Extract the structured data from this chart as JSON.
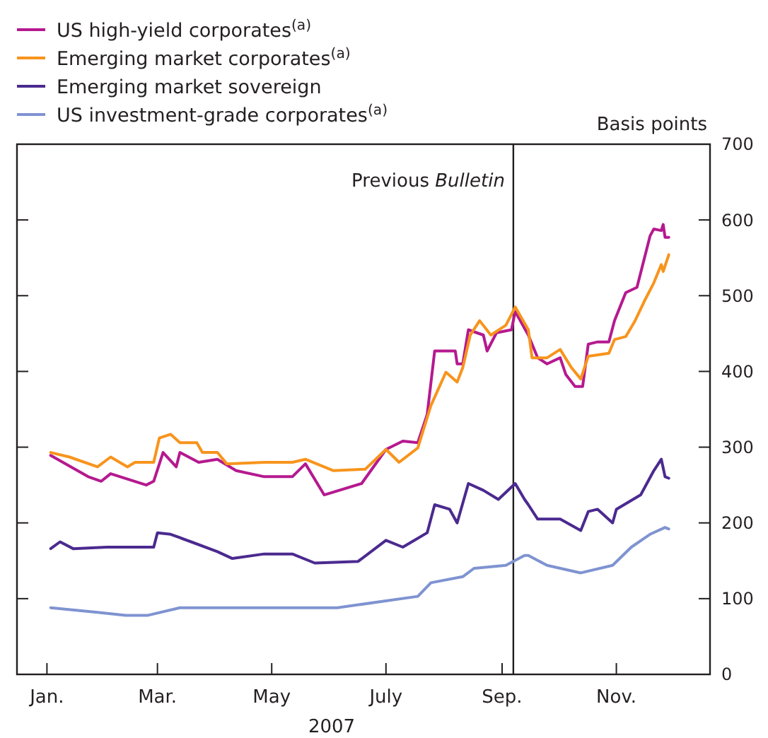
{
  "chart_data": {
    "type": "line",
    "xlabel": "2007",
    "ylabel": "Basis points",
    "legend": "top left",
    "grid": false,
    "xlim": [
      "2006-12-16",
      "2007-12-21"
    ],
    "xticks": [
      {
        "value": "2007-01-01",
        "label": "Jan."
      },
      {
        "value": "2007-03-01",
        "label": "Mar."
      },
      {
        "value": "2007-05-01",
        "label": "May"
      },
      {
        "value": "2007-07-01",
        "label": "July"
      },
      {
        "value": "2007-09-01",
        "label": "Sep."
      },
      {
        "value": "2007-11-01",
        "label": "Nov."
      }
    ],
    "ylim": [
      0,
      700
    ],
    "yticks": [
      0,
      100,
      200,
      300,
      400,
      500,
      600,
      700
    ],
    "ref_lines": [
      {
        "axis": "x",
        "value": "2007-09-07",
        "label": "Previous Bulletin",
        "color": "#231f20"
      }
    ],
    "series": [
      {
        "name": "US high-yield corporates$^{(a)}$",
        "color": "#b5198f",
        "x": [
          "2007-01-03",
          "2007-01-23",
          "2007-01-30",
          "2007-02-04",
          "2007-02-23",
          "2007-02-27",
          "2007-03-04",
          "2007-03-11",
          "2007-03-13",
          "2007-03-23",
          "2007-04-02",
          "2007-04-12",
          "2007-04-27",
          "2007-05-12",
          "2007-05-19",
          "2007-05-29",
          "2007-06-18",
          "2007-07-01",
          "2007-07-10",
          "2007-07-18",
          "2007-07-23",
          "2007-07-27",
          "2007-08-07",
          "2007-08-08",
          "2007-08-11",
          "2007-08-14",
          "2007-08-22",
          "2007-08-24",
          "2007-08-29",
          "2007-09-06",
          "2007-09-08",
          "2007-09-15",
          "2007-09-20",
          "2007-09-25",
          "2007-10-02",
          "2007-10-05",
          "2007-10-10",
          "2007-10-14",
          "2007-10-17",
          "2007-10-22",
          "2007-10-28",
          "2007-10-31",
          "2007-11-06",
          "2007-11-12",
          "2007-11-19",
          "2007-11-21",
          "2007-11-25",
          "2007-11-26",
          "2007-11-27",
          "2007-11-29"
        ],
        "values": [
          289,
          261,
          255,
          265,
          250,
          255,
          293,
          274,
          293,
          280,
          284,
          269,
          261,
          261,
          278,
          237,
          252,
          297,
          308,
          306,
          343,
          427,
          427,
          410,
          410,
          455,
          448,
          427,
          451,
          455,
          479,
          448,
          418,
          410,
          418,
          396,
          380,
          380,
          436,
          439,
          439,
          467,
          504,
          511,
          579,
          588,
          586,
          594,
          577,
          577
        ]
      },
      {
        "name": "Emerging market corporates$^{(a)}$",
        "color": "#f7941d",
        "x": [
          "2007-01-03",
          "2007-01-13",
          "2007-01-28",
          "2007-02-04",
          "2007-02-13",
          "2007-02-17",
          "2007-02-27",
          "2007-03-02",
          "2007-03-08",
          "2007-03-13",
          "2007-03-22",
          "2007-03-25",
          "2007-04-02",
          "2007-04-07",
          "2007-04-27",
          "2007-05-12",
          "2007-05-19",
          "2007-06-03",
          "2007-06-20",
          "2007-07-01",
          "2007-07-08",
          "2007-07-18",
          "2007-07-25",
          "2007-08-02",
          "2007-08-08",
          "2007-08-11",
          "2007-08-15",
          "2007-08-20",
          "2007-08-26",
          "2007-09-03",
          "2007-09-08",
          "2007-09-15",
          "2007-09-17",
          "2007-09-25",
          "2007-10-02",
          "2007-10-08",
          "2007-10-13",
          "2007-10-17",
          "2007-10-28",
          "2007-10-31",
          "2007-11-06",
          "2007-11-11",
          "2007-11-16",
          "2007-11-21",
          "2007-11-25",
          "2007-11-26",
          "2007-11-29"
        ],
        "values": [
          293,
          287,
          274,
          287,
          274,
          280,
          280,
          312,
          317,
          306,
          306,
          293,
          293,
          278,
          280,
          280,
          284,
          269,
          271,
          297,
          280,
          299,
          355,
          399,
          386,
          405,
          448,
          467,
          448,
          461,
          485,
          455,
          418,
          418,
          429,
          405,
          390,
          420,
          424,
          442,
          446,
          467,
          493,
          517,
          541,
          532,
          554
        ]
      },
      {
        "name": "Emerging market sovereign",
        "color": "#4b2a8f",
        "x": [
          "2007-01-03",
          "2007-01-08",
          "2007-01-15",
          "2007-02-02",
          "2007-02-27",
          "2007-03-01",
          "2007-03-08",
          "2007-03-19",
          "2007-04-02",
          "2007-04-10",
          "2007-04-27",
          "2007-05-12",
          "2007-05-24",
          "2007-06-16",
          "2007-07-01",
          "2007-07-10",
          "2007-07-23",
          "2007-07-27",
          "2007-08-04",
          "2007-08-08",
          "2007-08-14",
          "2007-08-22",
          "2007-08-30",
          "2007-09-08",
          "2007-09-13",
          "2007-09-15",
          "2007-09-20",
          "2007-10-02",
          "2007-10-13",
          "2007-10-17",
          "2007-10-22",
          "2007-10-30",
          "2007-11-01",
          "2007-11-14",
          "2007-11-21",
          "2007-11-25",
          "2007-11-27",
          "2007-11-29"
        ],
        "values": [
          166,
          175,
          166,
          168,
          168,
          187,
          185,
          175,
          162,
          153,
          159,
          159,
          147,
          149,
          177,
          168,
          187,
          224,
          218,
          200,
          252,
          243,
          231,
          252,
          231,
          224,
          205,
          205,
          190,
          215,
          218,
          200,
          218,
          237,
          269,
          284,
          261,
          259
        ]
      },
      {
        "name": "US investment-grade corporates$^{(a)}$",
        "color": "#7f93d1",
        "x": [
          "2007-01-03",
          "2007-01-28",
          "2007-02-12",
          "2007-02-24",
          "2007-03-13",
          "2007-05-12",
          "2007-06-05",
          "2007-07-01",
          "2007-07-18",
          "2007-07-25",
          "2007-08-11",
          "2007-08-17",
          "2007-09-03",
          "2007-09-13",
          "2007-09-15",
          "2007-09-25",
          "2007-10-13",
          "2007-10-30",
          "2007-11-09",
          "2007-11-19",
          "2007-11-27",
          "2007-11-29"
        ],
        "values": [
          88,
          82,
          78,
          78,
          88,
          88,
          88,
          97,
          103,
          121,
          129,
          140,
          144,
          157,
          157,
          144,
          134,
          144,
          168,
          185,
          194,
          192
        ]
      }
    ]
  }
}
